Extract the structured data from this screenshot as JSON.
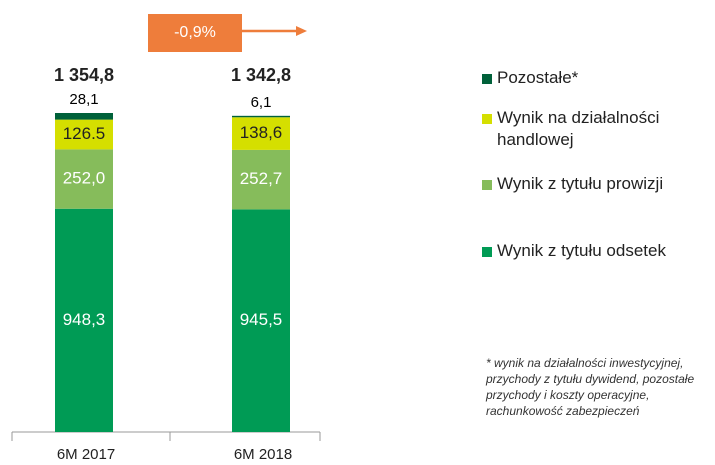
{
  "chart_data": {
    "type": "stacked_bar",
    "annotation": "-0,9%",
    "categories": [
      "6M 2017",
      "6M 2018"
    ],
    "series": [
      {
        "name": "Wynik z tytułu odsetek",
        "color": "#009b55",
        "values": [
          948.3,
          945.5
        ],
        "value_labels": [
          "948,3",
          "945,5"
        ]
      },
      {
        "name": "Wynik z tytułu prowizji",
        "color": "#86bc5b",
        "values": [
          252.0,
          252.7
        ],
        "value_labels": [
          "252,0",
          "252,7"
        ]
      },
      {
        "name": "Wynik na działalności handlowej",
        "color": "#d5df00",
        "values": [
          126.5,
          138.6
        ],
        "value_labels": [
          "126.5",
          "138,6"
        ]
      },
      {
        "name": "Pozostałe*",
        "color": "#00613a",
        "values": [
          28.1,
          6.1
        ],
        "value_labels": [
          "28,1",
          "6,1"
        ]
      }
    ],
    "totals": {
      "values": [
        1354.8,
        1342.8
      ],
      "value_labels": [
        "1 354,8",
        "1 342,8"
      ]
    },
    "footnote": "* wynik na działalności inwestycyjnej, przychody z tytułu dywidend, pozostałe przychody i koszty operacyjne, rachunkowość zabezpieczeń"
  }
}
